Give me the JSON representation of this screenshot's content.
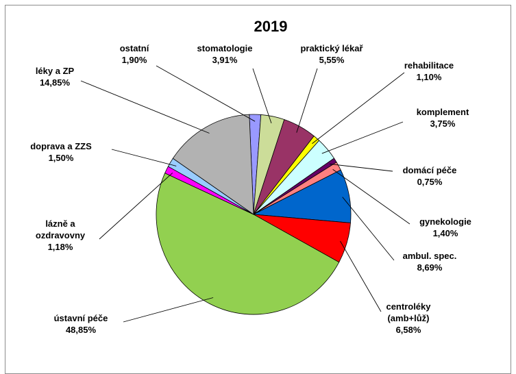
{
  "chart_data": {
    "type": "pie",
    "title": "2019",
    "slices": [
      {
        "label": "ostatní",
        "value_text": "1,90%",
        "value": 1.9,
        "color": "#9999ff"
      },
      {
        "label": "stomatologie",
        "value_text": "3,91%",
        "value": 3.91,
        "color": "#ccdd99"
      },
      {
        "label": "praktický lékař",
        "value_text": "5,55%",
        "value": 5.55,
        "color": "#993366"
      },
      {
        "label": "rehabilitace",
        "value_text": "1,10%",
        "value": 1.1,
        "color": "#ffff00"
      },
      {
        "label": "komplement",
        "value_text": "3,75%",
        "value": 3.75,
        "color": "#ccffff"
      },
      {
        "label": "domácí péče",
        "value_text": "0,75%",
        "value": 0.75,
        "color": "#660066"
      },
      {
        "label": "gynekologie",
        "value_text": "1,40%",
        "value": 1.4,
        "color": "#ff8080"
      },
      {
        "label": "ambul. spec.",
        "value_text": "8,69%",
        "value": 8.69,
        "color": "#0066cc"
      },
      {
        "label": "centroléky (amb+lůž)",
        "value_text": "6,58%",
        "value": 6.58,
        "color": "#ff0000"
      },
      {
        "label": "ústavní péče",
        "value_text": "48,85%",
        "value": 48.85,
        "color": "#92d050"
      },
      {
        "label": "lázně a ozdravovny",
        "value_text": "1,18%",
        "value": 1.18,
        "color": "#ff00ff"
      },
      {
        "label": "doprava a ZZS",
        "value_text": "1,50%",
        "value": 1.5,
        "color": "#99ccff"
      },
      {
        "label": "léky a ZP",
        "value_text": "14,85%",
        "value": 14.85,
        "color": "#b2b2b2"
      }
    ]
  }
}
